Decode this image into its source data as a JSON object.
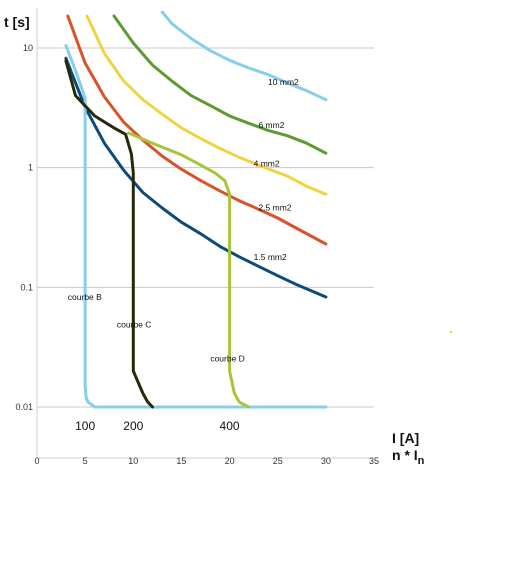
{
  "chart_data": {
    "type": "line",
    "title": "",
    "ylabel": "t [s]",
    "xlabel_line1": "I [A]",
    "xlabel_line2_main": "n * I",
    "xlabel_line2_sub": "n",
    "x_ticks": [
      "0",
      "5",
      "10",
      "15",
      "20",
      "25",
      "30",
      "35"
    ],
    "y_ticks": [
      "0.01",
      "0.1",
      "1",
      "10"
    ],
    "xlim": [
      0,
      35
    ],
    "ylim": [
      0.006,
      20
    ],
    "y_scale": "log",
    "grid": "horizontal major lines",
    "series": [
      {
        "name": "10 mm2",
        "color": "#87ceeb",
        "x": [
          13,
          14,
          16,
          18,
          20,
          22,
          24,
          26,
          28,
          30
        ],
        "y": [
          20,
          16,
          12,
          9.5,
          7.9,
          6.8,
          6.0,
          5.1,
          4.4,
          3.7
        ]
      },
      {
        "name": "6 mm2",
        "color": "#5e9a32",
        "x": [
          8,
          10,
          12,
          14,
          16,
          18,
          20,
          22,
          24,
          26,
          28,
          30
        ],
        "y": [
          18.5,
          11,
          7.2,
          5.3,
          4.0,
          3.3,
          2.7,
          2.35,
          2.05,
          1.85,
          1.6,
          1.32
        ]
      },
      {
        "name": "4 mm2",
        "color": "#f0d341",
        "x": [
          5.2,
          7,
          9,
          11,
          13,
          15,
          17,
          19,
          21,
          23,
          26,
          28,
          30
        ],
        "y": [
          18.5,
          9.0,
          5.3,
          3.7,
          2.8,
          2.15,
          1.75,
          1.45,
          1.22,
          1.05,
          0.85,
          0.7,
          0.6
        ]
      },
      {
        "name": "2.5 mm2",
        "color": "#d9532a",
        "x": [
          3.2,
          5,
          7,
          9,
          11,
          13,
          15,
          17,
          19,
          21,
          23,
          25,
          27,
          30
        ],
        "y": [
          18.5,
          7.5,
          3.9,
          2.4,
          1.7,
          1.25,
          0.97,
          0.78,
          0.64,
          0.53,
          0.45,
          0.38,
          0.31,
          0.23
        ]
      },
      {
        "name": "1.5 mm2",
        "color": "#0d4a7c",
        "x": [
          3,
          5,
          7,
          9,
          11,
          13,
          15,
          17,
          19,
          21,
          23,
          25,
          27,
          30
        ],
        "y": [
          8.2,
          3.2,
          1.6,
          0.95,
          0.62,
          0.46,
          0.35,
          0.28,
          0.22,
          0.18,
          0.15,
          0.125,
          0.105,
          0.083
        ]
      },
      {
        "name": "courbe B",
        "color": "#87ceeb",
        "x": [
          3,
          4,
          5,
          5,
          5.1,
          5.3,
          6,
          30
        ],
        "y": [
          10.5,
          6.5,
          3.8,
          0.015,
          0.012,
          0.011,
          0.01,
          0.01
        ]
      },
      {
        "name": "courbe C",
        "color": "#252a0a",
        "x": [
          3,
          4,
          6,
          8,
          9.2,
          9.8,
          10,
          10,
          11,
          11.5,
          12
        ],
        "y": [
          7.8,
          4.0,
          2.7,
          2.15,
          1.9,
          1.3,
          0.9,
          0.02,
          0.013,
          0.011,
          0.01
        ]
      },
      {
        "name": "courbe D",
        "color": "#a7c43a",
        "x": [
          9.5,
          12,
          15,
          17,
          18.5,
          19.5,
          20,
          20,
          20.5,
          21,
          22
        ],
        "y": [
          1.95,
          1.6,
          1.28,
          1.05,
          0.9,
          0.78,
          0.6,
          0.02,
          0.013,
          0.011,
          0.01
        ]
      }
    ],
    "series_labels": [
      {
        "series": "10 mm2",
        "x": 24,
        "y": 4.9
      },
      {
        "series": "6 mm2",
        "x": 23,
        "y": 2.15
      },
      {
        "series": "4 mm2",
        "x": 22.5,
        "y": 1.02
      },
      {
        "series": "2.5 mm2",
        "x": 23,
        "y": 0.44
      },
      {
        "series": "1.5 mm2",
        "x": 22.5,
        "y": 0.17
      },
      {
        "series": "courbe B",
        "x": 3.2,
        "y": 0.078
      },
      {
        "series": "courbe C",
        "x": 8.3,
        "y": 0.046
      },
      {
        "series": "courbe D",
        "x": 18,
        "y": 0.024
      }
    ],
    "current_labels": [
      {
        "text": "100",
        "x": 5
      },
      {
        "text": "200",
        "x": 10
      },
      {
        "text": "400",
        "x": 20
      }
    ]
  }
}
